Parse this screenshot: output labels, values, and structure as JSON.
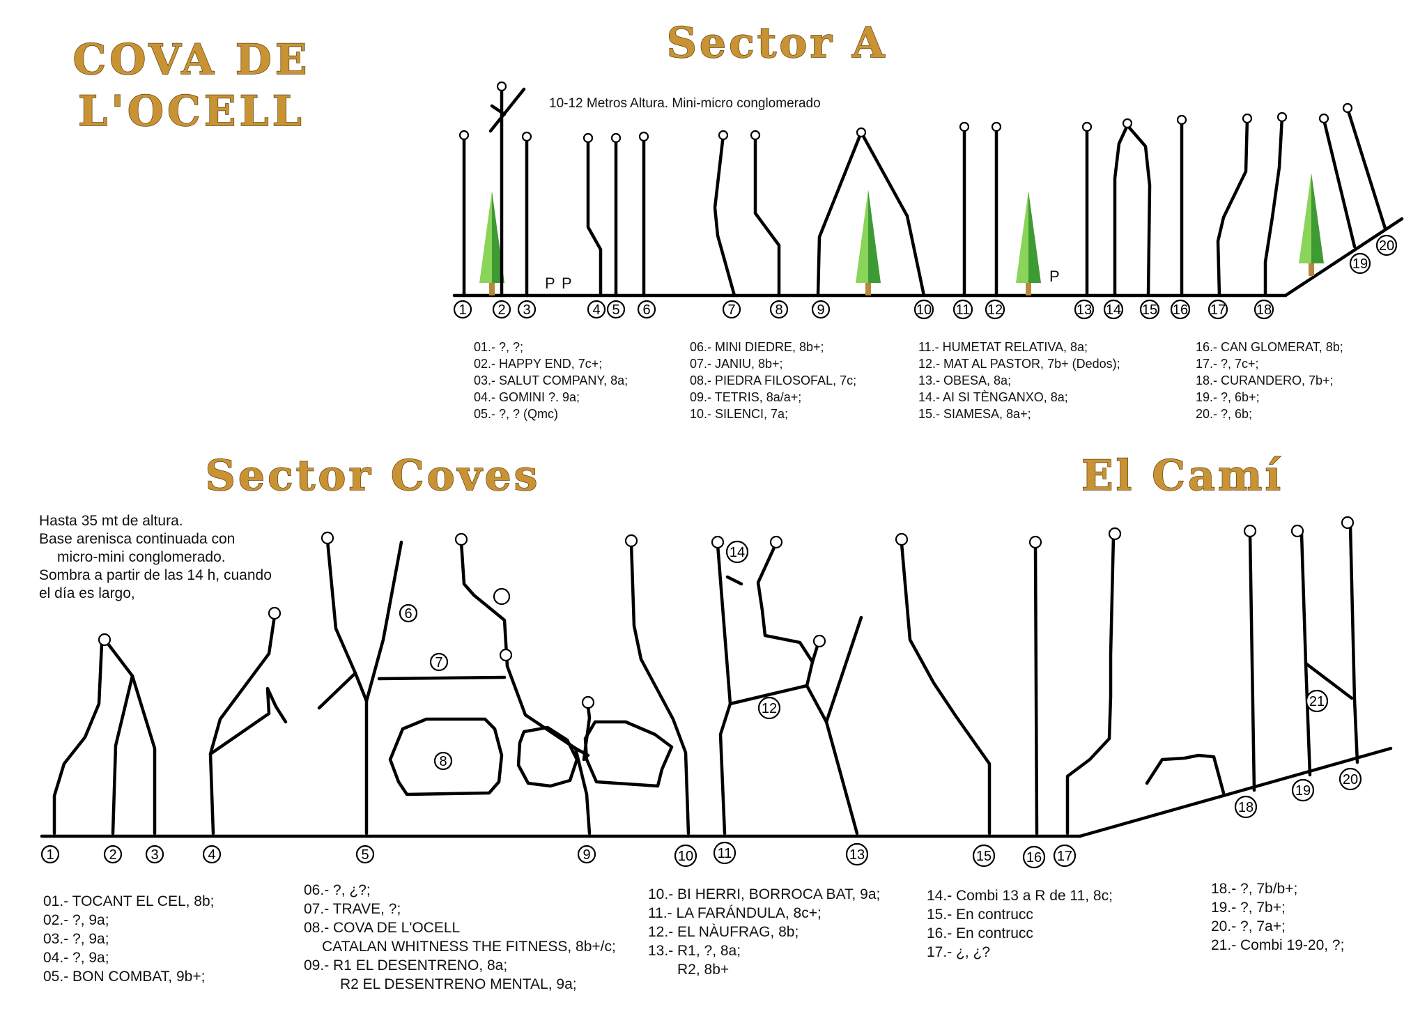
{
  "main_title": [
    "COVA DE",
    "L'OCELL"
  ],
  "sectors": {
    "a": {
      "title": "Sector A",
      "note": "10-12 Metros Altura. Mini-micro conglomerado",
      "p_marks": [
        "P",
        "P",
        "P"
      ],
      "legend_col1": [
        "01.- ?, ?;",
        "02.- HAPPY END, 7c+;",
        "03.- SALUT COMPANY, 8a;",
        "04.- GOMINI ?. 9a;",
        "05.- ?, ? (Qmc)"
      ],
      "legend_col2": [
        "06.- MINI DIEDRE, 8b+;",
        "07.- JANIU, 8b+;",
        "08.- PIEDRA FILOSOFAL, 7c;",
        "09.- TETRIS, 8a/a+;",
        "10.- SILENCI, 7a;"
      ],
      "legend_col3": [
        "11.- HUMETAT RELATIVA, 8a;",
        "12.- MAT AL PASTOR, 7b+ (Dedos);",
        "13.- OBESA, 8a;",
        "14.- AI SI TÈNGANXO, 8a;",
        "15.- SIAMESA, 8a+;"
      ],
      "legend_col4": [
        "16.- CAN GLOMERAT, 8b;",
        "17.- ?, 7c+;",
        "18.- CURANDERO, 7b+;",
        "19.- ?, 6b+;",
        "20.- ?, 6b;"
      ]
    },
    "coves": {
      "title": "Sector Coves",
      "note": [
        "Hasta 35 mt de altura.",
        "Base arenisca continuada con",
        "micro-mini conglomerado.",
        "Sombra a partir de las 14 h, cuando",
        "el día es largo,"
      ],
      "legend_col1": [
        "01.- TOCANT EL CEL, 8b;",
        "02.- ?, 9a;",
        "03.- ?, 9a;",
        "04.- ?, 9a;",
        "05.- BON COMBAT, 9b+;"
      ],
      "legend_col2": [
        "06.- ?, ¿?;",
        "07.- TRAVE, ?;",
        "08.- COVA DE L'OCELL",
        "CATALAN WHITNESS THE FITNESS, 8b+/c;",
        "09.- R1 EL DESENTRENO, 8a;",
        "R2 EL DESENTRENO MENTAL, 9a;"
      ],
      "legend_col3": [
        "10.- BI HERRI, BORROCA BAT, 9a;",
        "11.- LA FARÁNDULA, 8c+;",
        "12.- EL NÀUFRAG, 8b;",
        "13.- R1, ?, 8a;",
        "R2, 8b+"
      ],
      "legend_col4": [
        "14.- Combi 13 a R de 11, 8c;",
        "15.- En contrucc",
        "16.- En contrucc",
        "17.- ¿, ¿?"
      ]
    },
    "cami": {
      "title": "El Camí",
      "legend_col1": [
        "18.- ?, 7b/b+;",
        "19.- ?, 7b+;",
        "20.- ?, 7a+;",
        "21.- Combi 19-20, ?;"
      ]
    }
  },
  "sector_a_route_numbers": [
    "1",
    "2",
    "3",
    "4",
    "5",
    "6",
    "7",
    "8",
    "9",
    "10",
    "11",
    "12",
    "13",
    "14",
    "15",
    "16",
    "17",
    "18",
    "19",
    "20"
  ],
  "sector_coves_route_numbers": [
    "1",
    "2",
    "3",
    "4",
    "5",
    "6",
    "7",
    "8",
    "9",
    "10",
    "11",
    "12",
    "13",
    "14",
    "15",
    "16",
    "17",
    "18",
    "19",
    "20",
    "21"
  ],
  "colors": {
    "title_fill": "#c99333",
    "tree_light": "#8bd45a",
    "tree_dark": "#3e9a33",
    "trunk": "#b8873d",
    "line": "#000000"
  }
}
